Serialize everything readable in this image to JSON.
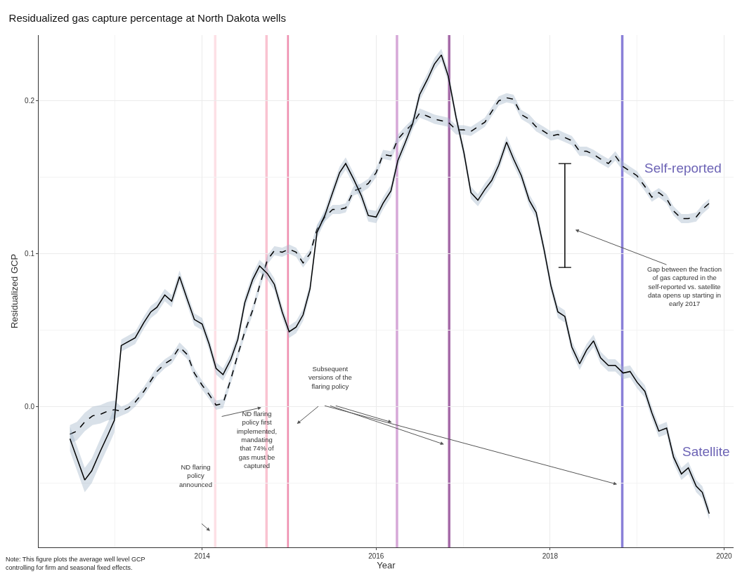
{
  "chart_data": {
    "type": "line",
    "title": "Residualized gas capture percentage at North Dakota wells",
    "xlabel": "Year",
    "ylabel": "Residualized GCP",
    "xlim": [
      2012.12,
      2020.11
    ],
    "ylim": [
      -0.092,
      0.243
    ],
    "xticks": [
      2014,
      2016,
      2018,
      2020
    ],
    "yticks": [
      {
        "value": 0,
        "label": "0.0"
      },
      {
        "value": 0.1,
        "label": "0.1"
      },
      {
        "value": 0.2,
        "label": "0.2"
      }
    ],
    "grid": true,
    "legend": false,
    "series": [
      {
        "name": "Self-reported",
        "color": "#000000",
        "line_style": "dashed",
        "x": [
          2012.48,
          2012.56,
          2012.65,
          2012.74,
          2012.83,
          2012.91,
          2012.99,
          2013.07,
          2013.15,
          2013.23,
          2013.33,
          2013.41,
          2013.48,
          2013.57,
          2013.65,
          2013.74,
          2013.83,
          2013.91,
          2014.0,
          2014.08,
          2014.16,
          2014.24,
          2014.33,
          2014.41,
          2014.49,
          2014.58,
          2014.66,
          2014.75,
          2014.83,
          2014.92,
          2015.0,
          2015.08,
          2015.16,
          2015.24,
          2015.32,
          2015.41,
          2015.5,
          2015.58,
          2015.65,
          2015.74,
          2015.83,
          2015.91,
          2016.0,
          2016.08,
          2016.17,
          2016.25,
          2016.33,
          2016.42,
          2016.5,
          2016.59,
          2016.67,
          2016.75,
          2016.83,
          2016.92,
          2017.01,
          2017.09,
          2017.17,
          2017.25,
          2017.33,
          2017.41,
          2017.5,
          2017.58,
          2017.67,
          2017.76,
          2017.84,
          2017.93,
          2018.01,
          2018.09,
          2018.17,
          2018.25,
          2018.34,
          2018.42,
          2018.5,
          2018.58,
          2018.67,
          2018.75,
          2018.84,
          2018.92,
          2019.0,
          2019.09,
          2019.17,
          2019.25,
          2019.34,
          2019.42,
          2019.51,
          2019.59,
          2019.68,
          2019.75,
          2019.83
        ],
        "values": [
          -0.018,
          -0.016,
          -0.01,
          -0.006,
          -0.005,
          -0.003,
          -0.002,
          -0.003,
          -0.001,
          0.003,
          0.01,
          0.017,
          0.023,
          0.028,
          0.031,
          0.039,
          0.034,
          0.022,
          0.014,
          0.008,
          0.001,
          0.002,
          0.018,
          0.034,
          0.049,
          0.063,
          0.079,
          0.096,
          0.102,
          0.101,
          0.103,
          0.101,
          0.094,
          0.1,
          0.116,
          0.124,
          0.129,
          0.129,
          0.13,
          0.141,
          0.143,
          0.146,
          0.153,
          0.165,
          0.164,
          0.175,
          0.18,
          0.185,
          0.192,
          0.19,
          0.188,
          0.187,
          0.186,
          0.181,
          0.181,
          0.18,
          0.183,
          0.186,
          0.193,
          0.2,
          0.202,
          0.201,
          0.191,
          0.188,
          0.183,
          0.18,
          0.177,
          0.178,
          0.176,
          0.174,
          0.167,
          0.167,
          0.165,
          0.162,
          0.159,
          0.164,
          0.157,
          0.154,
          0.151,
          0.144,
          0.137,
          0.14,
          0.136,
          0.128,
          0.123,
          0.123,
          0.124,
          0.129,
          0.133
        ],
        "lower": [
          -0.024,
          -0.022,
          -0.016,
          -0.012,
          -0.011,
          -0.009,
          -0.008,
          -0.006,
          -0.004,
          0.0,
          0.007,
          0.014,
          0.02,
          0.025,
          0.028,
          0.036,
          0.031,
          0.019,
          0.011,
          0.005,
          -0.002,
          -0.001,
          0.015,
          0.031,
          0.046,
          0.06,
          0.076,
          0.093,
          0.099,
          0.098,
          0.1,
          0.098,
          0.091,
          0.097,
          0.113,
          0.121,
          0.126,
          0.126,
          0.127,
          0.138,
          0.14,
          0.143,
          0.15,
          0.162,
          0.161,
          0.172,
          0.177,
          0.182,
          0.189,
          0.187,
          0.185,
          0.184,
          0.183,
          0.178,
          0.178,
          0.177,
          0.18,
          0.183,
          0.19,
          0.197,
          0.199,
          0.198,
          0.188,
          0.185,
          0.18,
          0.177,
          0.174,
          0.175,
          0.173,
          0.171,
          0.164,
          0.164,
          0.162,
          0.159,
          0.156,
          0.161,
          0.154,
          0.151,
          0.148,
          0.141,
          0.134,
          0.137,
          0.133,
          0.125,
          0.12,
          0.12,
          0.121,
          0.126,
          0.13
        ],
        "upper": [
          -0.012,
          -0.01,
          -0.004,
          0.0,
          0.001,
          0.003,
          0.004,
          0.0,
          0.002,
          0.006,
          0.013,
          0.02,
          0.026,
          0.031,
          0.034,
          0.042,
          0.037,
          0.025,
          0.017,
          0.011,
          0.004,
          0.005,
          0.021,
          0.037,
          0.052,
          0.066,
          0.082,
          0.099,
          0.105,
          0.104,
          0.106,
          0.104,
          0.097,
          0.103,
          0.119,
          0.127,
          0.132,
          0.132,
          0.133,
          0.144,
          0.146,
          0.149,
          0.156,
          0.168,
          0.167,
          0.178,
          0.183,
          0.188,
          0.195,
          0.193,
          0.191,
          0.19,
          0.189,
          0.184,
          0.184,
          0.183,
          0.186,
          0.189,
          0.196,
          0.203,
          0.205,
          0.204,
          0.194,
          0.191,
          0.186,
          0.183,
          0.18,
          0.181,
          0.179,
          0.177,
          0.17,
          0.17,
          0.168,
          0.165,
          0.162,
          0.167,
          0.16,
          0.157,
          0.154,
          0.147,
          0.14,
          0.143,
          0.139,
          0.131,
          0.126,
          0.126,
          0.127,
          0.132,
          0.136
        ]
      },
      {
        "name": "Satellite",
        "color": "#000000",
        "line_style": "solid",
        "x": [
          2012.48,
          2012.65,
          2012.73,
          2012.83,
          2012.92,
          2012.99,
          2013.07,
          2013.23,
          2013.33,
          2013.41,
          2013.48,
          2013.57,
          2013.65,
          2013.74,
          2013.83,
          2013.91,
          2014.0,
          2014.08,
          2014.16,
          2014.24,
          2014.33,
          2014.41,
          2014.49,
          2014.58,
          2014.66,
          2014.75,
          2014.83,
          2014.92,
          2015.0,
          2015.08,
          2015.16,
          2015.24,
          2015.32,
          2015.41,
          2015.5,
          2015.58,
          2015.65,
          2015.74,
          2015.83,
          2015.91,
          2016.0,
          2016.08,
          2016.17,
          2016.25,
          2016.33,
          2016.42,
          2016.5,
          2016.59,
          2016.67,
          2016.75,
          2016.83,
          2016.92,
          2017.01,
          2017.09,
          2017.17,
          2017.25,
          2017.33,
          2017.41,
          2017.5,
          2017.58,
          2017.67,
          2017.76,
          2017.84,
          2017.93,
          2018.01,
          2018.09,
          2018.17,
          2018.25,
          2018.34,
          2018.42,
          2018.5,
          2018.58,
          2018.67,
          2018.75,
          2018.84,
          2018.92,
          2019.0,
          2019.09,
          2019.17,
          2019.25,
          2019.34,
          2019.42,
          2019.51,
          2019.59,
          2019.68,
          2019.75,
          2019.83
        ],
        "values": [
          -0.021,
          -0.048,
          -0.042,
          -0.029,
          -0.018,
          -0.009,
          0.04,
          0.045,
          0.055,
          0.062,
          0.065,
          0.073,
          0.069,
          0.085,
          0.07,
          0.057,
          0.054,
          0.041,
          0.025,
          0.021,
          0.031,
          0.044,
          0.068,
          0.083,
          0.092,
          0.087,
          0.08,
          0.062,
          0.049,
          0.052,
          0.06,
          0.077,
          0.114,
          0.125,
          0.14,
          0.153,
          0.159,
          0.149,
          0.138,
          0.125,
          0.124,
          0.133,
          0.141,
          0.161,
          0.172,
          0.185,
          0.204,
          0.214,
          0.224,
          0.23,
          0.216,
          0.189,
          0.166,
          0.14,
          0.135,
          0.142,
          0.148,
          0.158,
          0.173,
          0.162,
          0.151,
          0.135,
          0.127,
          0.103,
          0.079,
          0.062,
          0.059,
          0.039,
          0.028,
          0.037,
          0.043,
          0.032,
          0.027,
          0.027,
          0.022,
          0.023,
          0.016,
          0.01,
          -0.004,
          -0.016,
          -0.014,
          -0.033,
          -0.044,
          -0.04,
          -0.052,
          -0.056,
          -0.07
        ],
        "lower": [
          -0.029,
          -0.056,
          -0.05,
          -0.037,
          -0.026,
          -0.017,
          0.036,
          0.041,
          0.051,
          0.058,
          0.061,
          0.069,
          0.065,
          0.081,
          0.066,
          0.053,
          0.05,
          0.037,
          0.021,
          0.017,
          0.027,
          0.04,
          0.064,
          0.079,
          0.088,
          0.083,
          0.076,
          0.058,
          0.045,
          0.048,
          0.056,
          0.073,
          0.11,
          0.121,
          0.136,
          0.149,
          0.155,
          0.145,
          0.134,
          0.121,
          0.12,
          0.129,
          0.137,
          0.157,
          0.168,
          0.181,
          0.2,
          0.21,
          0.22,
          0.226,
          0.212,
          0.185,
          0.162,
          0.136,
          0.131,
          0.138,
          0.144,
          0.154,
          0.169,
          0.158,
          0.147,
          0.131,
          0.123,
          0.099,
          0.075,
          0.058,
          0.055,
          0.035,
          0.024,
          0.033,
          0.039,
          0.028,
          0.023,
          0.023,
          0.018,
          0.019,
          0.012,
          0.006,
          -0.008,
          -0.02,
          -0.018,
          -0.037,
          -0.048,
          -0.044,
          -0.056,
          -0.06,
          -0.074
        ],
        "upper": [
          -0.013,
          -0.04,
          -0.034,
          -0.021,
          -0.01,
          -0.001,
          0.044,
          0.049,
          0.059,
          0.066,
          0.069,
          0.077,
          0.073,
          0.089,
          0.074,
          0.061,
          0.058,
          0.045,
          0.029,
          0.025,
          0.035,
          0.048,
          0.072,
          0.087,
          0.096,
          0.091,
          0.084,
          0.066,
          0.053,
          0.056,
          0.064,
          0.081,
          0.118,
          0.129,
          0.144,
          0.157,
          0.163,
          0.153,
          0.142,
          0.129,
          0.128,
          0.137,
          0.145,
          0.165,
          0.176,
          0.189,
          0.208,
          0.218,
          0.228,
          0.234,
          0.22,
          0.193,
          0.17,
          0.144,
          0.139,
          0.146,
          0.152,
          0.162,
          0.177,
          0.166,
          0.155,
          0.139,
          0.131,
          0.107,
          0.083,
          0.066,
          0.063,
          0.043,
          0.032,
          0.041,
          0.047,
          0.036,
          0.031,
          0.031,
          0.026,
          0.027,
          0.02,
          0.014,
          0.0,
          -0.012,
          -0.01,
          -0.029,
          -0.04,
          -0.036,
          -0.048,
          -0.052,
          -0.066
        ]
      },
      {
        "type": "line",
        "marker": "none",
        "color": "#000000",
        "x": [
          2018.17,
          2018.17
        ],
        "values": [
          0.091,
          0.159
        ],
        "errors": [
          0,
          0
        ]
      }
    ],
    "ref_lines": [
      {
        "axis": "x",
        "value": 2014.15,
        "color": "#fde0e6"
      },
      {
        "axis": "x",
        "value": 2014.74,
        "color": "#f9c3d1"
      },
      {
        "axis": "x",
        "value": 2014.99,
        "color": "#f090b0"
      },
      {
        "axis": "x",
        "value": 2016.24,
        "color": "#d6a8d8"
      },
      {
        "axis": "x",
        "value": 2016.84,
        "color": "#a56aa8"
      },
      {
        "axis": "x",
        "value": 2018.83,
        "color": "#8a80d8"
      }
    ],
    "annotations": [
      "ND flaring\npolicy\nannounced",
      "ND flaring\npolicy first\nimplemented,\nmandating\nthat 74% of\ngas must be\ncaptured",
      "Subsequent\nversions of the\nflaring policy",
      "Gap between the fraction\nof gas captured in the\nself-reported vs. satellite\ndata opens up starting in\nearly 2017",
      "Note: This figure plots the average well level GCP\ncontrolling for firm and seasonal fixed effects."
    ]
  }
}
